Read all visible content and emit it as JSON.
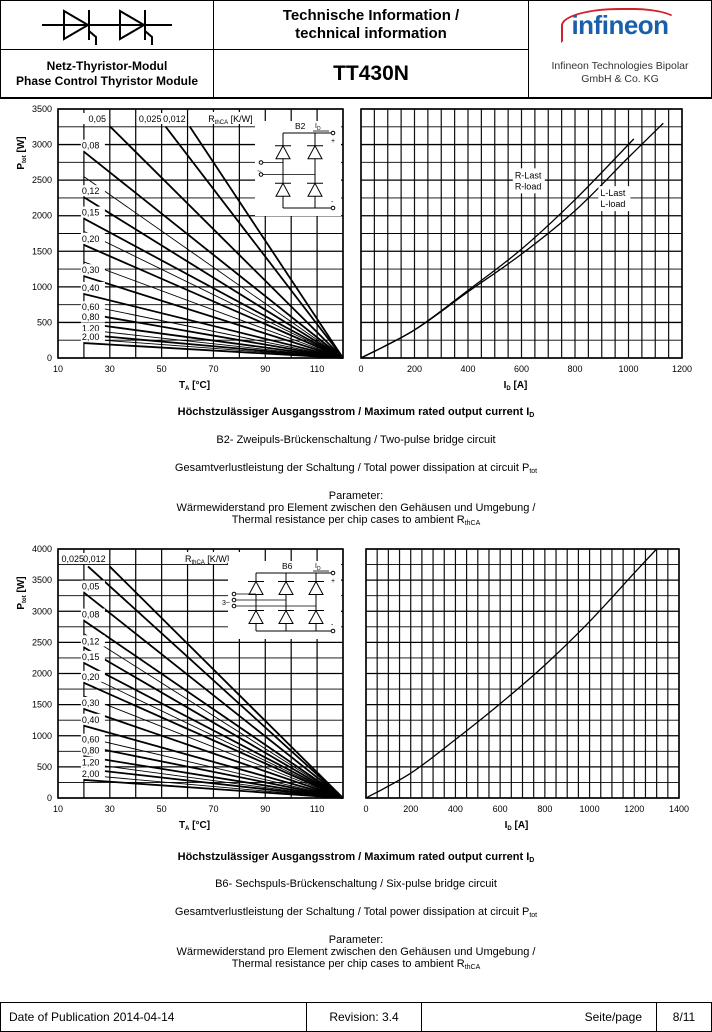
{
  "header": {
    "title_line1": "Technische Information /",
    "title_line2": "technical information",
    "module_de": "Netz-Thyristor-Modul",
    "module_en": "Phase Control Thyristor Module",
    "part_number": "TT430N",
    "logo_text": "infineon",
    "company_line1": "Infineon Technologies Bipolar",
    "company_line2": "GmbH & Co. KG",
    "symbol_icon": "thyristor-pair-symbol",
    "brand_colors": {
      "blue": "#1a5fab",
      "red": "#d0202a"
    }
  },
  "section_b2": {
    "caption_main": "Höchstzulässiger Ausgangsstrom / Maximum rated output current I",
    "caption_main_sub": "D",
    "circuit": "B2- Zweipuls-Brückenschaltung / Two-pulse bridge circuit",
    "loss": "Gesamtverlustleistung der Schaltung / Total power dissipation at circuit P",
    "loss_sub": "tot",
    "param_title": "Parameter:",
    "param_line1": "Wärmewiderstand pro Element zwischen den Gehäusen und Umgebung /",
    "param_line2": "Thermal resistance per chip cases to ambient R",
    "param_line2_sub": "thCA"
  },
  "section_b6": {
    "caption_main": "Höchstzulässiger Ausgangsstrom / Maximum rated output current I",
    "caption_main_sub": "D",
    "circuit": "B6- Sechspuls-Brückenschaltung / Six-pulse bridge circuit",
    "loss": "Gesamtverlustleistung der Schaltung / Total power dissipation at circuit P",
    "loss_sub": "tot",
    "param_title": "Parameter:",
    "param_line1": "Wärmewiderstand pro Element zwischen den Gehäusen und Umgebung /",
    "param_line2": "Thermal resistance per chip cases to ambient R",
    "param_line2_sub": "thCA"
  },
  "chart_data": [
    {
      "id": "b2-left",
      "type": "line",
      "xlabel": "T",
      "xlabel_sub": "A",
      "xlabel_unit": " [°C]",
      "ylabel": "P",
      "ylabel_sub": "tot",
      "ylabel_unit": " [W]",
      "xlim": [
        10,
        120
      ],
      "ylim": [
        0,
        3500
      ],
      "xticks": [
        10,
        30,
        50,
        70,
        90,
        110
      ],
      "yticks": [
        0,
        500,
        1000,
        1500,
        2000,
        2500,
        3000,
        3500
      ],
      "xgrid_step": 10,
      "ygrid_step": 250,
      "param_label": "R",
      "param_label_sub": "thCA",
      "param_label_unit": " [K/W]",
      "inset": {
        "name": "B2",
        "current": "I",
        "current_sub": "D",
        "plus": "+",
        "minus": "-",
        "ac": "~"
      },
      "note": "lines converge to 0 W at 120 °C; value = P at TA = 20 °C",
      "series": [
        {
          "label": "0,012",
          "p_at_20": 5500,
          "top": true
        },
        {
          "label": "0,025",
          "p_at_20": 4750,
          "top": true
        },
        {
          "label": "0,05",
          "p_at_20": 3620,
          "top": true
        },
        {
          "label": "0,08",
          "p_at_20": 2900
        },
        {
          "label": "",
          "p_at_20": 2550,
          "thin": true
        },
        {
          "label": "0,12",
          "p_at_20": 2260
        },
        {
          "label": "0,15",
          "p_at_20": 1960
        },
        {
          "label": "",
          "p_at_20": 1780,
          "thin": true
        },
        {
          "label": "0,20",
          "p_at_20": 1590
        },
        {
          "label": "",
          "p_at_20": 1350,
          "thin": true
        },
        {
          "label": "0,30",
          "p_at_20": 1150
        },
        {
          "label": "0,40",
          "p_at_20": 900
        },
        {
          "label": "",
          "p_at_20": 750,
          "thin": true
        },
        {
          "label": "0,60",
          "p_at_20": 630
        },
        {
          "label": "0,80",
          "p_at_20": 490
        },
        {
          "label": "",
          "p_at_20": 400,
          "thin": true
        },
        {
          "label": "1,20",
          "p_at_20": 330
        },
        {
          "label": "",
          "p_at_20": 270,
          "thin": true
        },
        {
          "label": "2,00",
          "p_at_20": 210
        }
      ]
    },
    {
      "id": "b2-right",
      "type": "line",
      "xlabel": "I",
      "xlabel_sub": "D",
      "xlabel_unit": " [A]",
      "xlim": [
        0,
        1200
      ],
      "ylim": [
        0,
        3500
      ],
      "xticks": [
        0,
        200,
        400,
        600,
        800,
        1000,
        1200
      ],
      "xgrid_step": 50,
      "ygrid_step": 250,
      "series": [
        {
          "label1": "R-Last",
          "label2": "R-load",
          "x": [
            0,
            200,
            400,
            600,
            800,
            1020
          ],
          "y": [
            0,
            395,
            950,
            1530,
            2225,
            3080
          ]
        },
        {
          "label1": "L-Last",
          "label2": "L-load",
          "x": [
            0,
            200,
            400,
            600,
            800,
            1000,
            1130
          ],
          "y": [
            0,
            394,
            930,
            1460,
            2070,
            2820,
            3300
          ]
        }
      ]
    },
    {
      "id": "b6-left",
      "type": "line",
      "xlabel": "T",
      "xlabel_sub": "A",
      "xlabel_unit": " [°C]",
      "ylabel": "P",
      "ylabel_sub": "tot",
      "ylabel_unit": " [W]",
      "xlim": [
        10,
        120
      ],
      "ylim": [
        0,
        4000
      ],
      "xticks": [
        10,
        30,
        50,
        70,
        90,
        110
      ],
      "yticks": [
        0,
        500,
        1000,
        1500,
        2000,
        2500,
        3000,
        3500,
        4000
      ],
      "xgrid_step": 10,
      "ygrid_step": 250,
      "param_label": "R",
      "param_label_sub": "thCA",
      "param_label_unit": " [K/W]",
      "inset": {
        "name": "B6",
        "current": "I",
        "current_sub": "D",
        "plus": "+",
        "minus": "-",
        "ac": "3~"
      },
      "series": [
        {
          "label": "0,012",
          "p_at_20": 4130,
          "top": true
        },
        {
          "label": "0,025",
          "p_at_20": 3780,
          "top": true
        },
        {
          "label": "0,05",
          "p_at_20": 3300
        },
        {
          "label": "0,08",
          "p_at_20": 2850
        },
        {
          "label": "",
          "p_at_20": 2640,
          "thin": true
        },
        {
          "label": "0,12",
          "p_at_20": 2420
        },
        {
          "label": "0,15",
          "p_at_20": 2170
        },
        {
          "label": "",
          "p_at_20": 2000,
          "thin": true
        },
        {
          "label": "0,20",
          "p_at_20": 1850
        },
        {
          "label": "",
          "p_at_20": 1640,
          "thin": true
        },
        {
          "label": "0,30",
          "p_at_20": 1430
        },
        {
          "label": "0,40",
          "p_at_20": 1160
        },
        {
          "label": "",
          "p_at_20": 980,
          "thin": true
        },
        {
          "label": "0,60",
          "p_at_20": 840
        },
        {
          "label": "0,80",
          "p_at_20": 670
        },
        {
          "label": "",
          "p_at_20": 560,
          "thin": true
        },
        {
          "label": "1,20",
          "p_at_20": 470
        },
        {
          "label": "",
          "p_at_20": 370,
          "thin": true
        },
        {
          "label": "2,00",
          "p_at_20": 290
        }
      ]
    },
    {
      "id": "b6-right",
      "type": "line",
      "xlabel": "I",
      "xlabel_sub": "D",
      "xlabel_unit": " [A]",
      "xlim": [
        0,
        1400
      ],
      "ylim": [
        0,
        4000
      ],
      "xticks": [
        0,
        200,
        400,
        600,
        800,
        1000,
        1200,
        1400
      ],
      "xgrid_step": 50,
      "ygrid_step": 250,
      "series": [
        {
          "label1": "",
          "label2": "",
          "x": [
            0,
            200,
            400,
            600,
            800,
            1000,
            1200,
            1300
          ],
          "y": [
            0,
            398,
            940,
            1515,
            2135,
            2835,
            3615,
            4000
          ]
        }
      ]
    }
  ],
  "footer": {
    "date": "Date of Publication 2014-04-14",
    "revision": "Revision: 3.4",
    "page_label": "Seite/page",
    "page": "8/11"
  }
}
